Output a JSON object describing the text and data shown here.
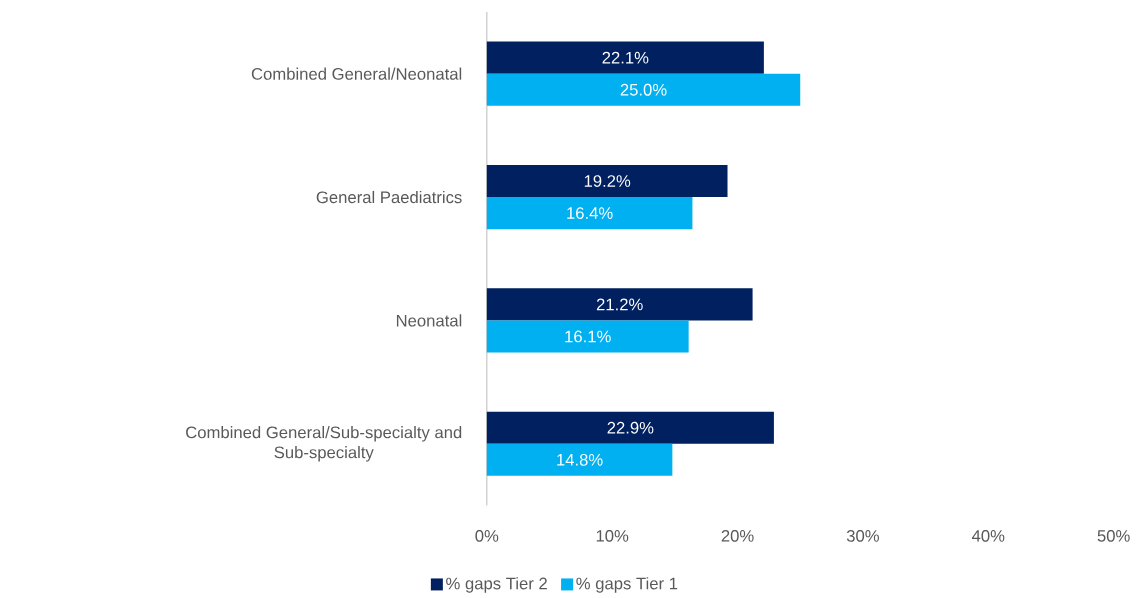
{
  "chart_data": {
    "type": "bar",
    "orientation": "horizontal",
    "categories": [
      "Combined General/Neonatal",
      "General Paediatrics",
      "Neonatal",
      "Combined General/Sub-specialty and Sub-specialty"
    ],
    "series": [
      {
        "name": "% gaps Tier 2",
        "color": "#002060",
        "values": [
          22.1,
          19.2,
          21.2,
          22.9
        ],
        "value_labels": [
          "22.1%",
          "19.2%",
          "21.2%",
          "22.9%"
        ]
      },
      {
        "name": "% gaps Tier 1",
        "color": "#00b0f0",
        "values": [
          25.0,
          16.4,
          16.1,
          14.8
        ],
        "value_labels": [
          "25.0%",
          "16.4%",
          "16.1%",
          "14.8%"
        ]
      }
    ],
    "xlim": [
      0,
      50
    ],
    "xticks": [
      {
        "value": 0,
        "label": "0%"
      },
      {
        "value": 10,
        "label": "10%"
      },
      {
        "value": 20,
        "label": "20%"
      },
      {
        "value": 30,
        "label": "30%"
      },
      {
        "value": 40,
        "label": "40%"
      },
      {
        "value": 50,
        "label": "50%"
      }
    ],
    "grid": false,
    "legend": "bottom"
  }
}
